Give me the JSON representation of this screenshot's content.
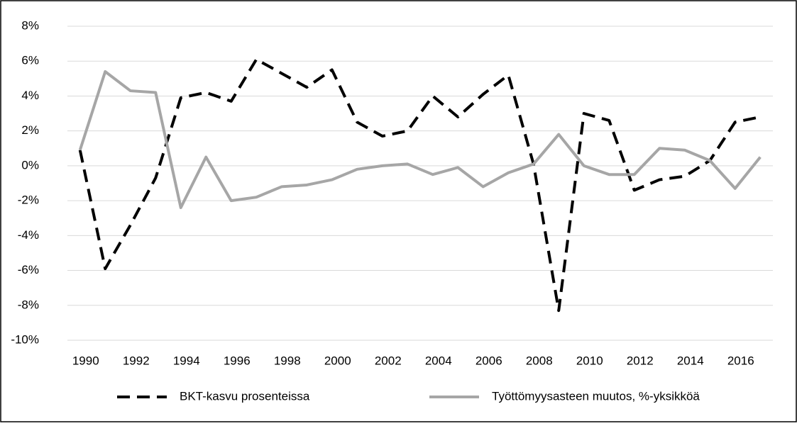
{
  "chart_data": {
    "type": "line",
    "categories": [
      "1990",
      null,
      "1992",
      null,
      "1994",
      null,
      "1996",
      null,
      "1998",
      null,
      "2000",
      null,
      "2002",
      null,
      "2004",
      null,
      "2006",
      null,
      "2008",
      null,
      "2010",
      null,
      "2012",
      null,
      "2014",
      null,
      "2016",
      null
    ],
    "series": [
      {
        "name": "BKT-kasvu prosenteissa",
        "color": "#000000",
        "dashed": true,
        "values": [
          0.9,
          -5.9,
          -3.4,
          -0.7,
          3.9,
          4.2,
          3.7,
          6.1,
          5.3,
          4.5,
          5.5,
          2.5,
          1.7,
          2.0,
          4.0,
          2.8,
          4.1,
          5.2,
          0.1,
          -8.3,
          3.0,
          2.6,
          -1.4,
          -0.8,
          -0.6,
          0.3,
          2.5,
          2.8
        ]
      },
      {
        "name": "Työttömyysasteen muutos, %-yksikköä",
        "color": "#a6a6a6",
        "dashed": false,
        "values": [
          0.9,
          5.4,
          4.3,
          4.2,
          -2.4,
          0.5,
          -2.0,
          -1.8,
          -1.2,
          -1.1,
          -0.8,
          -0.2,
          0.0,
          0.1,
          -0.5,
          -0.1,
          -1.2,
          -0.4,
          0.1,
          1.8,
          0.0,
          -0.5,
          -0.5,
          1.0,
          0.9,
          0.3,
          -1.3,
          0.5
        ]
      }
    ],
    "ylim": [
      -10,
      8
    ],
    "yticks": [
      {
        "value": -10,
        "label": "-10%"
      },
      {
        "value": -8,
        "label": "-8%"
      },
      {
        "value": -6,
        "label": "-6%"
      },
      {
        "value": -4,
        "label": "-4%"
      },
      {
        "value": -2,
        "label": "-2%"
      },
      {
        "value": 0,
        "label": "0%"
      },
      {
        "value": 2,
        "label": "2%"
      },
      {
        "value": 4,
        "label": "4%"
      },
      {
        "value": 6,
        "label": "6%"
      },
      {
        "value": 8,
        "label": "8%"
      }
    ],
    "grid": true,
    "legend": "bottom"
  }
}
